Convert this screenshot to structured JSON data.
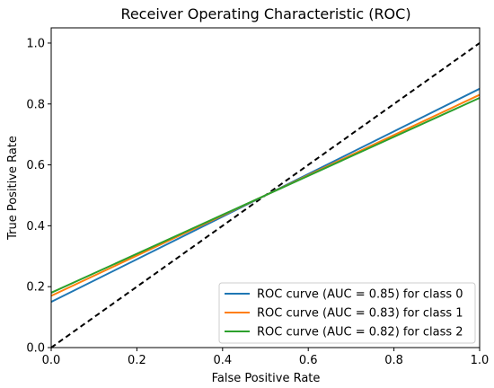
{
  "chart_data": {
    "type": "line",
    "title": "Receiver Operating Characteristic (ROC)",
    "xlabel": "False Positive Rate",
    "ylabel": "True Positive Rate",
    "xlim": [
      0,
      1
    ],
    "ylim": [
      0,
      1.05
    ],
    "xticks": [
      "0.0",
      "0.2",
      "0.4",
      "0.6",
      "0.8",
      "1.0"
    ],
    "yticks": [
      "0.0",
      "0.2",
      "0.4",
      "0.6",
      "0.8",
      "1.0"
    ],
    "grid": false,
    "legend_position": "lower-right",
    "series": [
      {
        "name": "ROC curve (AUC = 0.85) for class 0",
        "color": "#1f77b4",
        "x": [
          0,
          1
        ],
        "y": [
          0.15,
          0.85
        ]
      },
      {
        "name": "ROC curve (AUC = 0.83) for class 1",
        "color": "#ff7f0e",
        "x": [
          0,
          1
        ],
        "y": [
          0.17,
          0.83
        ]
      },
      {
        "name": "ROC curve (AUC = 0.82) for class 2",
        "color": "#2ca02c",
        "x": [
          0,
          1
        ],
        "y": [
          0.18,
          0.82
        ]
      }
    ],
    "reference_line": {
      "style": "dashed",
      "color": "#000000",
      "x": [
        0,
        1
      ],
      "y": [
        0,
        1
      ]
    }
  }
}
